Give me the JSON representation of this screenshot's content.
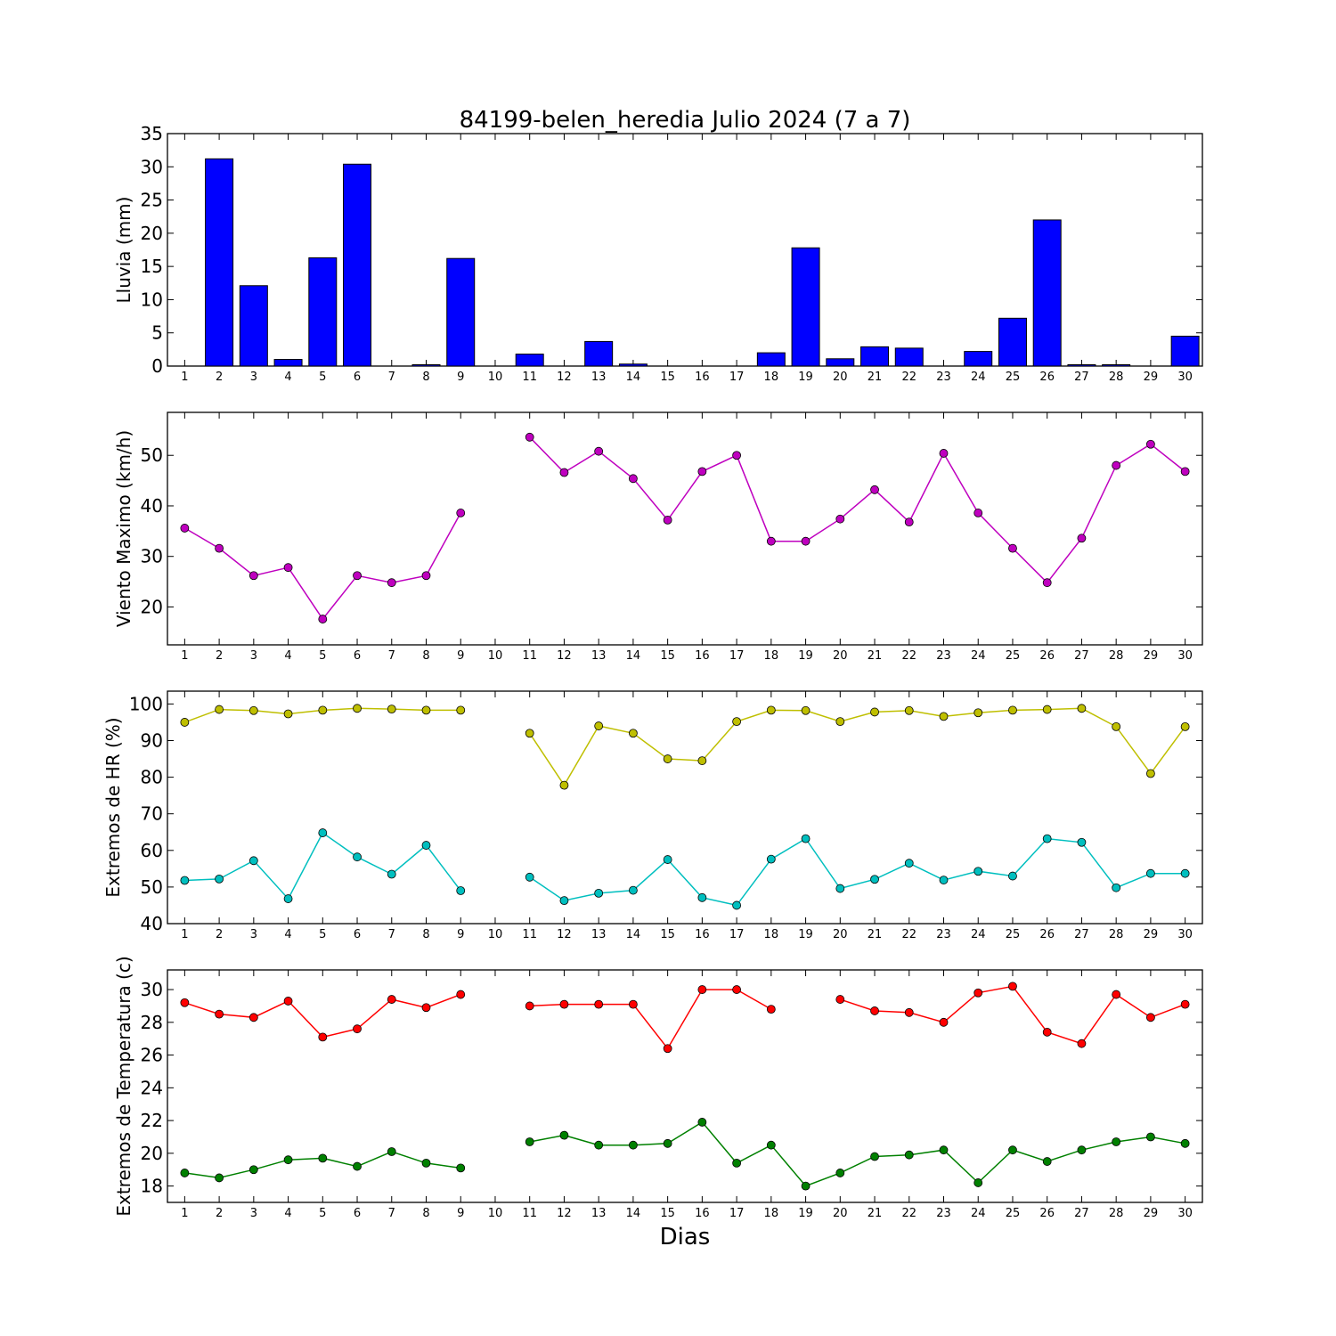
{
  "title": "84199-belen_heredia Julio 2024  (7 a 7)",
  "xlabel": "Dias",
  "chart_data": [
    {
      "type": "bar",
      "ylabel": "Lluvia (mm)",
      "ylim": [
        0,
        35
      ],
      "yticks": [
        0,
        5,
        10,
        15,
        20,
        25,
        30,
        35
      ],
      "x": [
        1,
        2,
        3,
        4,
        5,
        6,
        7,
        8,
        9,
        10,
        11,
        12,
        13,
        14,
        15,
        16,
        17,
        18,
        19,
        20,
        21,
        22,
        23,
        24,
        25,
        26,
        27,
        28,
        29,
        30
      ],
      "xlim": [
        0.5,
        30.5
      ],
      "series": [
        {
          "color": "#0000ff",
          "values": [
            0,
            31.2,
            12.1,
            1.0,
            16.3,
            30.4,
            0,
            0.2,
            16.2,
            0,
            1.8,
            0,
            3.7,
            0.3,
            0,
            0,
            0,
            2.0,
            17.8,
            1.1,
            2.9,
            2.7,
            0,
            2.2,
            7.2,
            22.0,
            0.2,
            0.2,
            0,
            4.5
          ]
        }
      ]
    },
    {
      "type": "line",
      "ylabel": "Viento Maximo (km/h)",
      "ylim": [
        12.5,
        58.5
      ],
      "yticks": [
        20,
        30,
        40,
        50
      ],
      "x": [
        1,
        2,
        3,
        4,
        5,
        6,
        7,
        8,
        9,
        10,
        11,
        12,
        13,
        14,
        15,
        16,
        17,
        18,
        19,
        20,
        21,
        22,
        23,
        24,
        25,
        26,
        27,
        28,
        29,
        30
      ],
      "xlim": [
        0.5,
        30.5
      ],
      "series": [
        {
          "color": "#bf00bf",
          "values": [
            35.6,
            31.6,
            26.2,
            27.8,
            17.6,
            26.2,
            24.8,
            26.2,
            38.6,
            null,
            53.6,
            46.6,
            50.8,
            45.4,
            37.2,
            46.8,
            50.0,
            33.0,
            33.0,
            37.4,
            43.2,
            36.8,
            50.4,
            38.6,
            31.6,
            24.8,
            33.6,
            48.0,
            52.2,
            46.8
          ]
        }
      ]
    },
    {
      "type": "line",
      "ylabel": "Extremos de HR (%)",
      "ylim": [
        40,
        103.5
      ],
      "yticks": [
        40,
        50,
        60,
        70,
        80,
        90,
        100
      ],
      "x": [
        1,
        2,
        3,
        4,
        5,
        6,
        7,
        8,
        9,
        10,
        11,
        12,
        13,
        14,
        15,
        16,
        17,
        18,
        19,
        20,
        21,
        22,
        23,
        24,
        25,
        26,
        27,
        28,
        29,
        30
      ],
      "xlim": [
        0.5,
        30.5
      ],
      "series": [
        {
          "color": "#bfbf00",
          "values": [
            95.0,
            98.5,
            98.2,
            97.3,
            98.3,
            98.8,
            98.6,
            98.3,
            98.3,
            null,
            92.0,
            77.8,
            94.0,
            92.0,
            85.0,
            84.5,
            95.2,
            98.3,
            98.2,
            95.2,
            97.8,
            98.2,
            96.6,
            97.6,
            98.3,
            98.5,
            98.8,
            93.8,
            81.0,
            93.8
          ]
        },
        {
          "color": "#00bfbf",
          "values": [
            51.8,
            52.2,
            57.2,
            46.8,
            64.8,
            58.2,
            53.5,
            61.4,
            49.0,
            null,
            52.7,
            46.3,
            48.3,
            49.1,
            57.5,
            47.1,
            45.0,
            57.6,
            63.2,
            49.6,
            52.1,
            56.5,
            51.9,
            54.3,
            53.0,
            63.2,
            62.2,
            49.8,
            53.7,
            53.7
          ]
        }
      ]
    },
    {
      "type": "line",
      "ylabel": "Extremos de Temperatura (c)",
      "ylim": [
        17,
        31.2
      ],
      "yticks": [
        18,
        20,
        22,
        24,
        26,
        28,
        30
      ],
      "x": [
        1,
        2,
        3,
        4,
        5,
        6,
        7,
        8,
        9,
        10,
        11,
        12,
        13,
        14,
        15,
        16,
        17,
        18,
        19,
        20,
        21,
        22,
        23,
        24,
        25,
        26,
        27,
        28,
        29,
        30
      ],
      "xlim": [
        0.5,
        30.5
      ],
      "series": [
        {
          "color": "#ff0000",
          "values": [
            29.2,
            28.5,
            28.3,
            29.3,
            27.1,
            27.6,
            29.4,
            28.9,
            29.7,
            null,
            29.0,
            29.1,
            29.1,
            29.1,
            26.4,
            30.0,
            30.0,
            28.8,
            null,
            29.4,
            28.7,
            28.6,
            28.0,
            29.8,
            30.2,
            27.4,
            26.7,
            29.7,
            28.3,
            29.1
          ]
        },
        {
          "color": "#008000",
          "values": [
            18.8,
            18.5,
            19.0,
            19.6,
            19.7,
            19.2,
            20.1,
            19.4,
            19.1,
            null,
            20.7,
            21.1,
            20.5,
            20.5,
            20.6,
            21.9,
            19.4,
            20.5,
            18.0,
            18.8,
            19.8,
            19.9,
            20.2,
            18.2,
            20.2,
            19.5,
            20.2,
            20.7,
            21.0,
            20.6
          ]
        }
      ]
    }
  ]
}
